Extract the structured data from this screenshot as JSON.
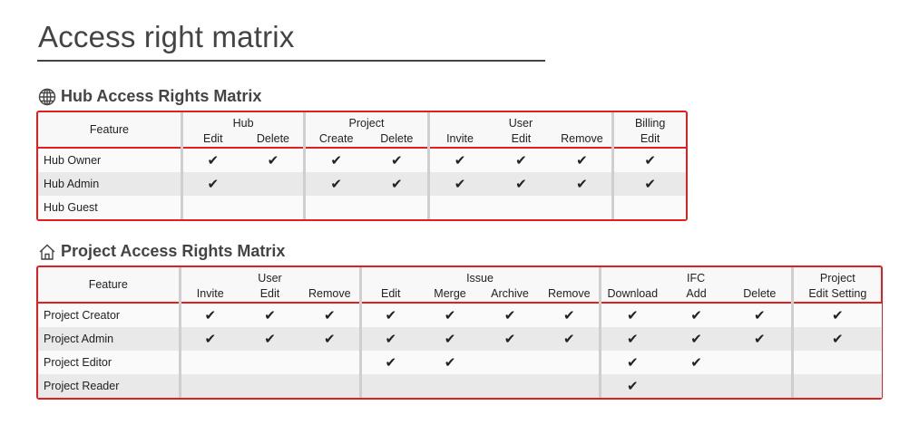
{
  "page": {
    "title": "Access right matrix"
  },
  "hub": {
    "title": "Hub Access Rights Matrix",
    "icon": "globe-icon",
    "feature_label": "Feature",
    "groups": [
      {
        "label": "Hub",
        "columns": [
          "Edit",
          "Delete"
        ]
      },
      {
        "label": "Project",
        "columns": [
          "Create",
          "Delete"
        ]
      },
      {
        "label": "User",
        "columns": [
          "Invite",
          "Edit",
          "Remove"
        ]
      },
      {
        "label": "Billing",
        "columns": [
          "Edit"
        ]
      }
    ],
    "rows": [
      {
        "role": "Hub Owner",
        "rights": [
          true,
          true,
          true,
          true,
          true,
          true,
          true,
          true
        ]
      },
      {
        "role": "Hub Admin",
        "rights": [
          true,
          false,
          true,
          true,
          true,
          true,
          true,
          true
        ]
      },
      {
        "role": "Hub Guest",
        "rights": [
          false,
          false,
          false,
          false,
          false,
          false,
          false,
          false
        ]
      }
    ]
  },
  "project": {
    "title": "Project Access Rights Matrix",
    "icon": "home-icon",
    "feature_label": "Feature",
    "groups": [
      {
        "label": "User",
        "columns": [
          "Invite",
          "Edit",
          "Remove"
        ]
      },
      {
        "label": "Issue",
        "columns": [
          "Edit",
          "Merge",
          "Archive",
          "Remove"
        ]
      },
      {
        "label": "IFC",
        "columns": [
          "Download",
          "Add",
          "Delete"
        ]
      },
      {
        "label": "Project",
        "columns": [
          "Edit Setting"
        ]
      }
    ],
    "rows": [
      {
        "role": "Project Creator",
        "rights": [
          true,
          true,
          true,
          true,
          true,
          true,
          true,
          true,
          true,
          true,
          true
        ]
      },
      {
        "role": "Project Admin",
        "rights": [
          true,
          true,
          true,
          true,
          true,
          true,
          true,
          true,
          true,
          true,
          true
        ]
      },
      {
        "role": "Project Editor",
        "rights": [
          false,
          false,
          false,
          true,
          true,
          false,
          false,
          true,
          true,
          false,
          false
        ]
      },
      {
        "role": "Project Reader",
        "rights": [
          false,
          false,
          false,
          false,
          false,
          false,
          false,
          true,
          false,
          false,
          false
        ]
      }
    ]
  },
  "check_symbol": "✔",
  "colors": {
    "highlight_border": "#e02020",
    "alt_row": "#e9e9e9",
    "separator": "#cfcfcf"
  }
}
